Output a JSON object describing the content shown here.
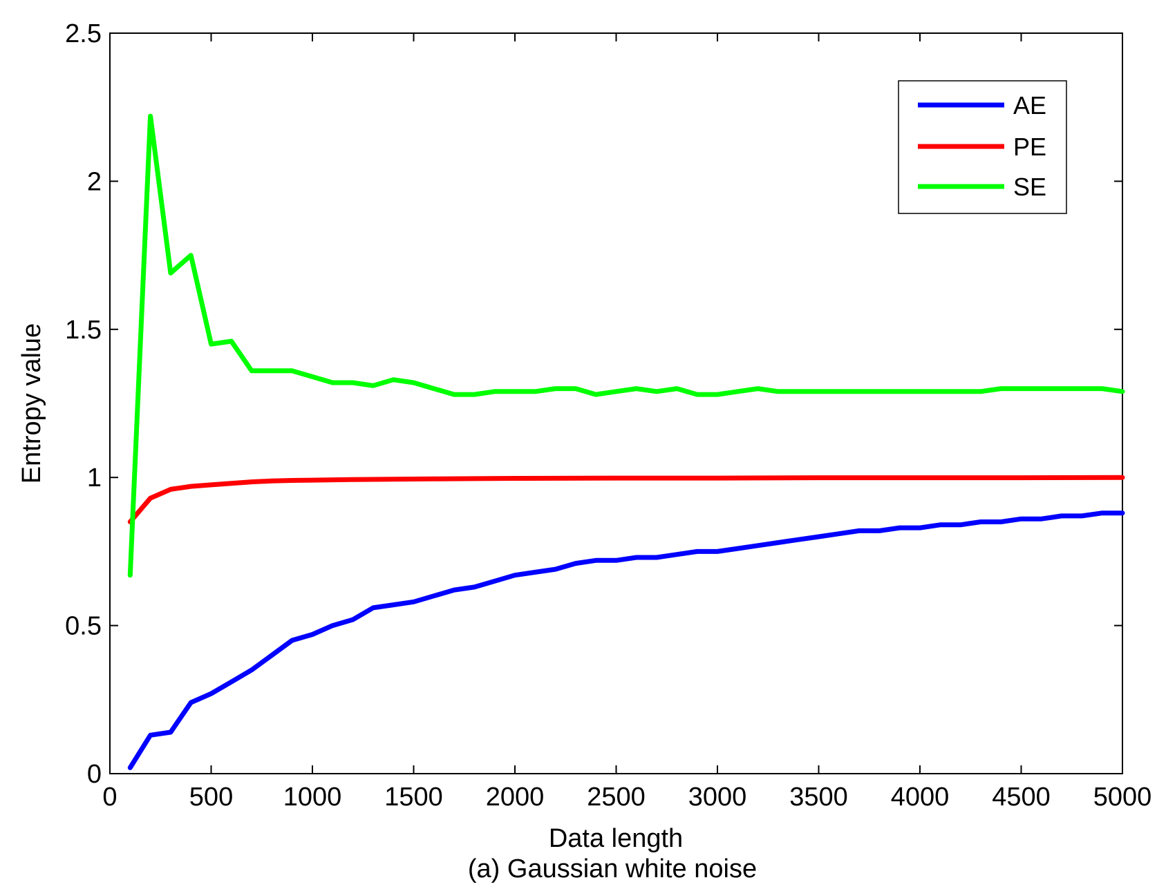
{
  "chart_data": {
    "type": "line",
    "title": "",
    "caption": "(a) Gaussian white noise",
    "xlabel": "Data length",
    "ylabel": "Entropy value",
    "xlim": [
      0,
      5000
    ],
    "ylim": [
      0,
      2.5
    ],
    "xticks": [
      0,
      500,
      1000,
      1500,
      2000,
      2500,
      3000,
      3500,
      4000,
      4500,
      5000
    ],
    "yticks": [
      0,
      0.5,
      1,
      1.5,
      2,
      2.5
    ],
    "xtick_labels": [
      "0",
      "500",
      "1000",
      "1500",
      "2000",
      "2500",
      "3000",
      "3500",
      "4000",
      "4500",
      "5000"
    ],
    "ytick_labels": [
      "0",
      "0.5",
      "1",
      "1.5",
      "2",
      "2.5"
    ],
    "grid": false,
    "legend_position": "top-right",
    "series": [
      {
        "name": "AE",
        "color": "#0000ff",
        "x": [
          100,
          200,
          300,
          400,
          500,
          600,
          700,
          800,
          900,
          1000,
          1100,
          1200,
          1300,
          1400,
          1500,
          1600,
          1700,
          1800,
          1900,
          2000,
          2100,
          2200,
          2300,
          2400,
          2500,
          2600,
          2700,
          2800,
          2900,
          3000,
          3100,
          3200,
          3300,
          3400,
          3500,
          3600,
          3700,
          3800,
          3900,
          4000,
          4100,
          4200,
          4300,
          4400,
          4500,
          4600,
          4700,
          4800,
          4900,
          5000
        ],
        "y": [
          0.02,
          0.13,
          0.14,
          0.24,
          0.27,
          0.31,
          0.35,
          0.4,
          0.45,
          0.47,
          0.5,
          0.52,
          0.56,
          0.57,
          0.58,
          0.6,
          0.62,
          0.63,
          0.65,
          0.67,
          0.68,
          0.69,
          0.71,
          0.72,
          0.72,
          0.73,
          0.73,
          0.74,
          0.75,
          0.75,
          0.76,
          0.77,
          0.78,
          0.79,
          0.8,
          0.81,
          0.82,
          0.82,
          0.83,
          0.83,
          0.84,
          0.84,
          0.85,
          0.85,
          0.86,
          0.86,
          0.87,
          0.87,
          0.88,
          0.88
        ]
      },
      {
        "name": "PE",
        "color": "#ff0000",
        "x": [
          100,
          200,
          300,
          400,
          500,
          600,
          700,
          800,
          900,
          1000,
          1200,
          1400,
          1600,
          1800,
          2000,
          2500,
          3000,
          3500,
          4000,
          4500,
          5000
        ],
        "y": [
          0.85,
          0.93,
          0.96,
          0.97,
          0.975,
          0.98,
          0.985,
          0.988,
          0.99,
          0.991,
          0.993,
          0.994,
          0.995,
          0.996,
          0.997,
          0.998,
          0.998,
          0.999,
          0.999,
          0.999,
          1.0
        ]
      },
      {
        "name": "SE",
        "color": "#00ff00",
        "x": [
          100,
          200,
          300,
          400,
          500,
          600,
          700,
          800,
          900,
          1000,
          1100,
          1200,
          1300,
          1400,
          1500,
          1600,
          1700,
          1800,
          1900,
          2000,
          2100,
          2200,
          2300,
          2400,
          2500,
          2600,
          2700,
          2800,
          2900,
          3000,
          3100,
          3200,
          3300,
          3400,
          3500,
          3600,
          3700,
          3800,
          3900,
          4000,
          4100,
          4200,
          4300,
          4400,
          4500,
          4600,
          4700,
          4800,
          4900,
          5000
        ],
        "y": [
          0.67,
          2.22,
          1.69,
          1.75,
          1.45,
          1.46,
          1.36,
          1.36,
          1.36,
          1.34,
          1.32,
          1.32,
          1.31,
          1.33,
          1.32,
          1.3,
          1.28,
          1.28,
          1.29,
          1.29,
          1.29,
          1.3,
          1.3,
          1.28,
          1.29,
          1.3,
          1.29,
          1.3,
          1.28,
          1.28,
          1.29,
          1.3,
          1.29,
          1.29,
          1.29,
          1.29,
          1.29,
          1.29,
          1.29,
          1.29,
          1.29,
          1.29,
          1.29,
          1.3,
          1.3,
          1.3,
          1.3,
          1.3,
          1.3,
          1.29
        ]
      }
    ]
  }
}
